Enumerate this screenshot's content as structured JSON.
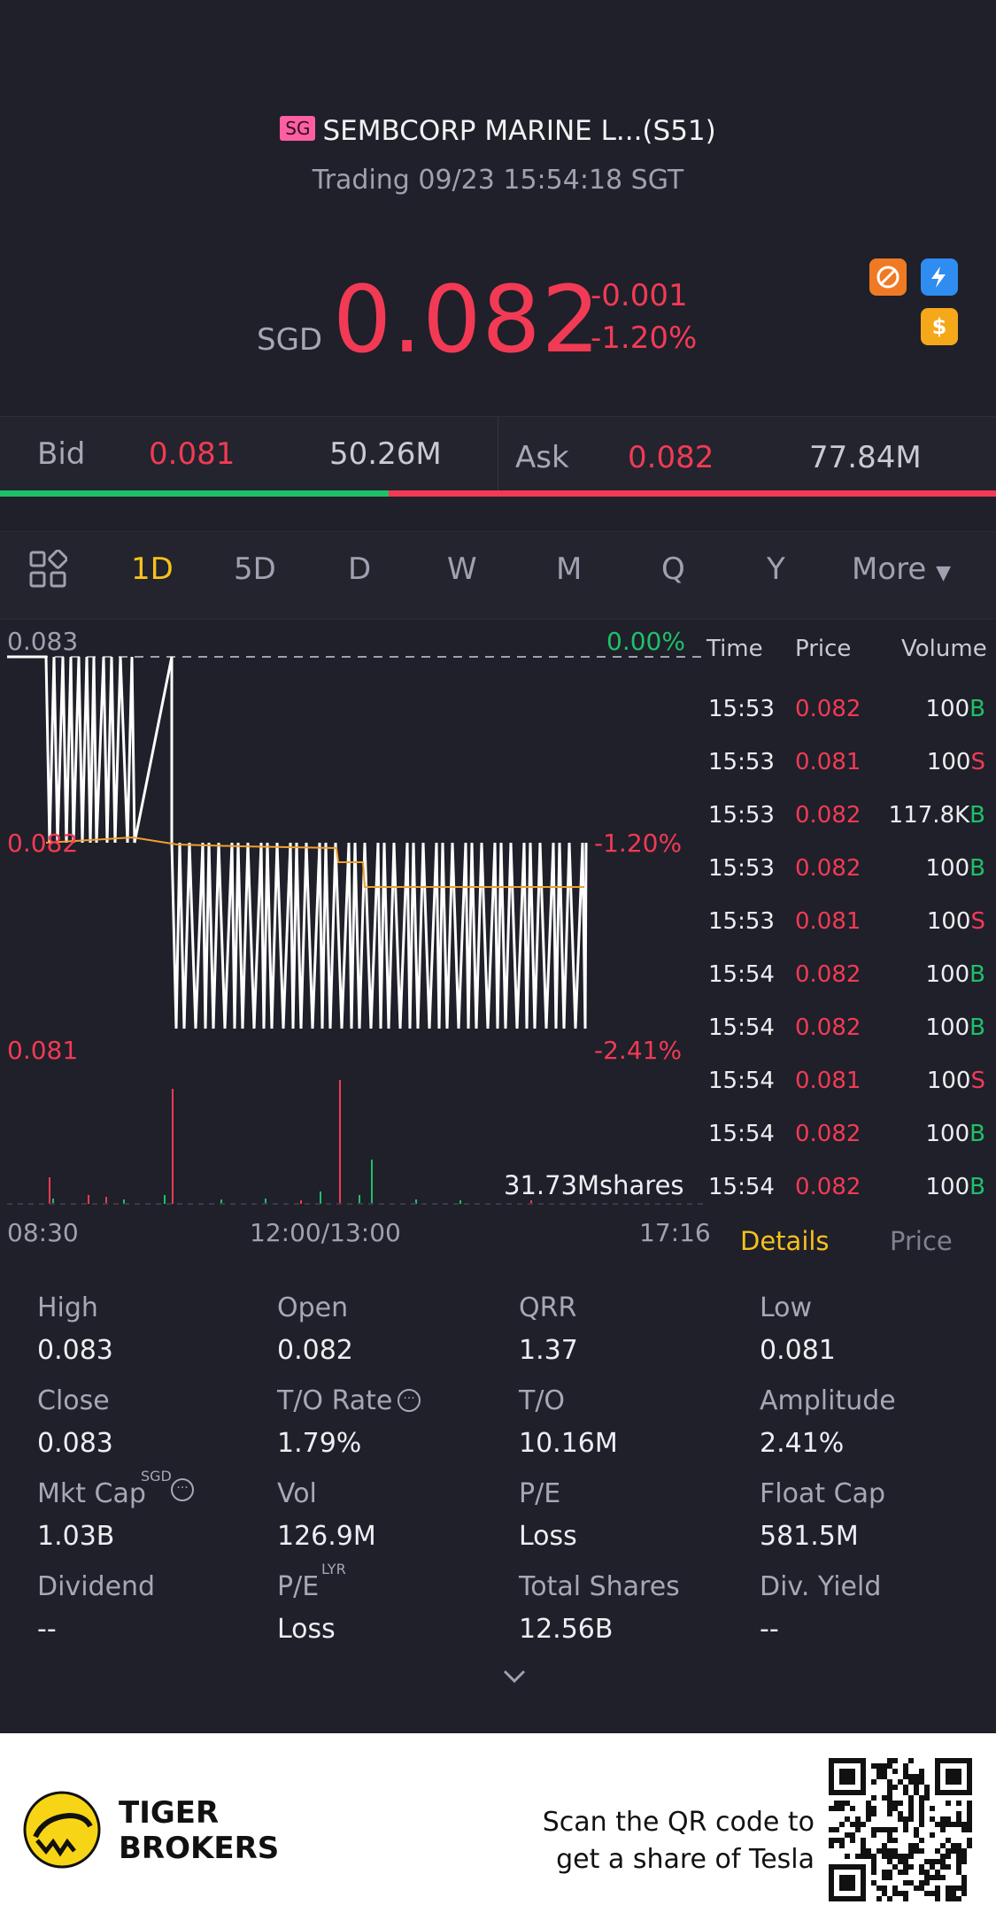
{
  "header": {
    "market_badge": "SG",
    "stock_name": "SEMBCORP MARINE L...(S51)",
    "status": "Trading 09/23 15:54:18 SGT",
    "currency": "SGD",
    "price": "0.082",
    "change": "-0.001",
    "change_pct": "-1.20%",
    "icons": [
      "no-short-icon",
      "flash-icon",
      "dollar-icon"
    ]
  },
  "bid_ask": {
    "bid_label": "Bid",
    "bid_price": "0.081",
    "bid_vol": "50.26M",
    "ask_label": "Ask",
    "ask_price": "0.082",
    "ask_vol": "77.84M",
    "bid_ratio": 0.39
  },
  "tabs": [
    "1D",
    "5D",
    "D",
    "W",
    "M",
    "Q",
    "Y",
    "More"
  ],
  "active_tab": "1D",
  "chart": {
    "top_price": "0.083",
    "top_pct": "0.00%",
    "mid_price": "0.082",
    "mid_pct": "-1.20%",
    "low_price": "0.081",
    "low_pct": "-2.41%",
    "volume_label": "31.73Mshares",
    "x_start": "08:30",
    "x_mid": "12:00/13:00",
    "x_end": "17:16"
  },
  "ticks": {
    "headers": [
      "Time",
      "Price",
      "Volume"
    ],
    "rows": [
      {
        "time": "15:53",
        "price": "0.082",
        "vol": "100",
        "side": "B"
      },
      {
        "time": "15:53",
        "price": "0.081",
        "vol": "100",
        "side": "S"
      },
      {
        "time": "15:53",
        "price": "0.082",
        "vol": "117.8K",
        "side": "B"
      },
      {
        "time": "15:53",
        "price": "0.082",
        "vol": "100",
        "side": "B"
      },
      {
        "time": "15:53",
        "price": "0.081",
        "vol": "100",
        "side": "S"
      },
      {
        "time": "15:54",
        "price": "0.082",
        "vol": "100",
        "side": "B"
      },
      {
        "time": "15:54",
        "price": "0.082",
        "vol": "100",
        "side": "B"
      },
      {
        "time": "15:54",
        "price": "0.081",
        "vol": "100",
        "side": "S"
      },
      {
        "time": "15:54",
        "price": "0.082",
        "vol": "100",
        "side": "B"
      },
      {
        "time": "15:54",
        "price": "0.082",
        "vol": "100",
        "side": "B"
      }
    ],
    "tab_details": "Details",
    "tab_price": "Price"
  },
  "details": {
    "high_label": "High",
    "high": "0.083",
    "open_label": "Open",
    "open": "0.082",
    "qrr_label": "QRR",
    "qrr": "1.37",
    "low_label": "Low",
    "low": "0.081",
    "close_label": "Close",
    "close": "0.083",
    "to_rate_label": "T/O Rate",
    "to_rate": "1.79%",
    "to_label": "T/O",
    "to": "10.16M",
    "amplitude_label": "Amplitude",
    "amplitude": "2.41%",
    "mktcap_label": "Mkt Cap",
    "mktcap_sup": "SGD",
    "mktcap": "1.03B",
    "vol_label": "Vol",
    "vol": "126.9M",
    "pe_label": "P/E",
    "pe": "Loss",
    "floatcap_label": "Float Cap",
    "floatcap": "581.5M",
    "dividend_label": "Dividend",
    "dividend": "--",
    "pe_lyr_label": "P/E",
    "pe_lyr_sup": "LYR",
    "pe_lyr": "Loss",
    "total_shares_label": "Total Shares",
    "total_shares": "12.56B",
    "div_yield_label": "Div. Yield",
    "div_yield": "--"
  },
  "footer": {
    "brand_line1": "TIGER",
    "brand_line2": "BROKERS",
    "slogan_line1": "Scan the QR code to",
    "slogan_line2": "get a share of Tesla"
  }
}
